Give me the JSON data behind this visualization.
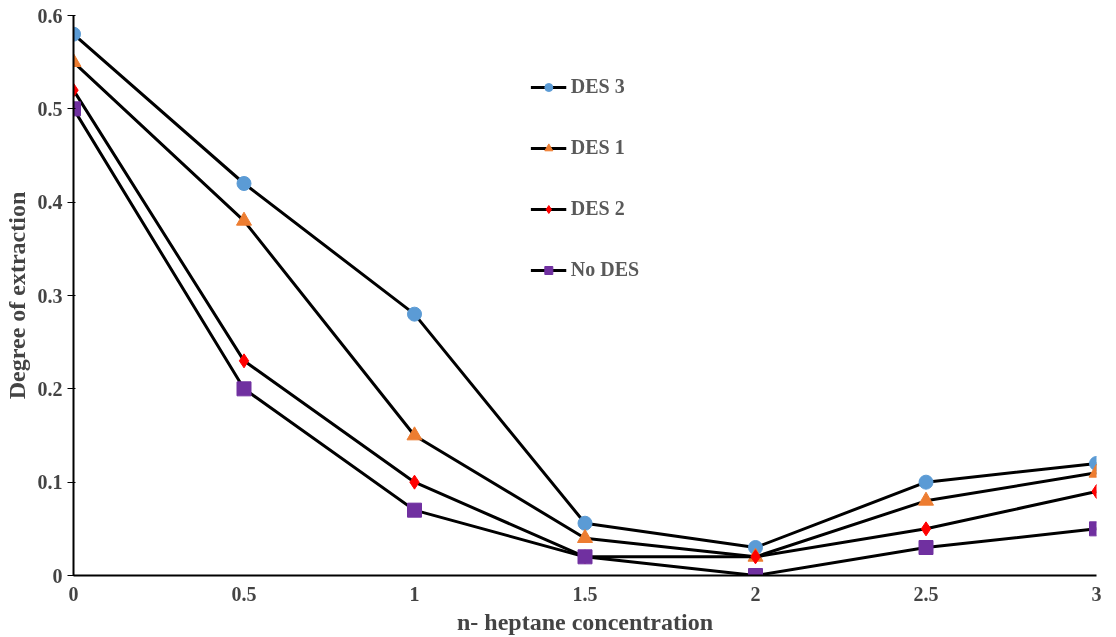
{
  "chart_data": {
    "type": "line",
    "xlabel": "n- heptane concentration",
    "ylabel": "Degree of extraction",
    "x": [
      0,
      0.5,
      1,
      1.5,
      2,
      2.5,
      3
    ],
    "series": [
      {
        "name": "DES 3",
        "color": "#5b9bd5",
        "marker": "circle",
        "values": [
          0.58,
          0.42,
          0.28,
          0.056,
          0.03,
          0.1,
          0.12
        ]
      },
      {
        "name": "DES 1",
        "color": "#ed7d31",
        "marker": "triangle",
        "values": [
          0.55,
          0.38,
          0.15,
          0.04,
          0.02,
          0.08,
          0.11
        ]
      },
      {
        "name": "DES 2",
        "color": "#ff0000",
        "marker": "diamond",
        "values": [
          0.52,
          0.23,
          0.1,
          0.02,
          0.02,
          0.05,
          0.09
        ]
      },
      {
        "name": "No DES",
        "color": "#7030a0",
        "marker": "square",
        "values": [
          0.5,
          0.2,
          0.07,
          0.02,
          0,
          0.03,
          0.05
        ]
      }
    ],
    "xlim": [
      0,
      3
    ],
    "ylim": [
      0,
      0.6
    ],
    "xticks": [
      0,
      0.5,
      1,
      1.5,
      2,
      2.5,
      3
    ],
    "yticks": [
      0,
      0.1,
      0.2,
      0.3,
      0.4,
      0.5,
      0.6
    ],
    "grid": false,
    "legend": "top",
    "line_style": "solid"
  }
}
